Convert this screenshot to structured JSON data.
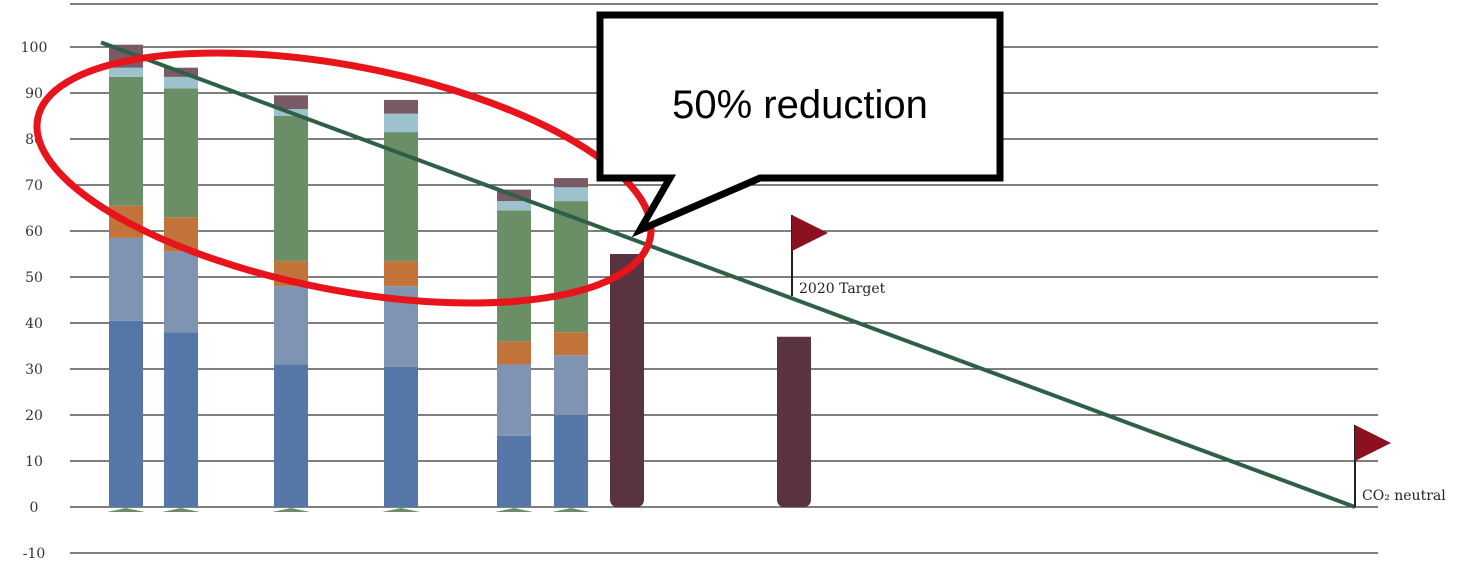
{
  "chart_data": {
    "type": "bar",
    "stacked": true,
    "title": "",
    "xlabel": "",
    "ylabel": "",
    "ylim": [
      -10,
      100
    ],
    "yticks": [
      100,
      90,
      80,
      70,
      60,
      50,
      40,
      30,
      20,
      10,
      0,
      -10
    ],
    "grid": true,
    "legend": "none",
    "colors": {
      "seg1": "#5577a8",
      "seg2": "#7f93b3",
      "seg3": "#c27339",
      "seg4": "#6a8f67",
      "seg5": "#9cc3cd",
      "seg6": "#7a5a66",
      "target_bar": "#5a3341",
      "trend_line": "#2e6045",
      "flag": "#8b1020",
      "callout_ellipse": "#e8141b"
    },
    "stacked_bars": [
      {
        "segments": [
          40.5,
          18.0,
          7.0,
          28.0,
          2.0,
          5.0
        ]
      },
      {
        "segments": [
          38.0,
          17.5,
          7.5,
          28.0,
          2.5,
          2.0
        ]
      },
      {
        "segments": [
          31.0,
          17.0,
          5.5,
          31.5,
          1.5,
          3.0
        ]
      },
      {
        "segments": [
          30.5,
          17.5,
          5.5,
          28.0,
          4.0,
          3.0
        ]
      },
      {
        "segments": [
          15.5,
          15.5,
          5.0,
          28.5,
          2.0,
          2.5
        ]
      },
      {
        "segments": [
          20.0,
          13.0,
          5.0,
          28.5,
          3.0,
          2.0
        ]
      }
    ],
    "target_bars": [
      {
        "value": 55
      },
      {
        "value": 37
      }
    ],
    "trend_line": {
      "from": 101,
      "to": 0
    },
    "flags": [
      {
        "label": "2020 Target",
        "value": 50
      },
      {
        "label": "CO₂ neutral",
        "value": 0
      }
    ],
    "callout": {
      "text": "50% reduction"
    }
  }
}
